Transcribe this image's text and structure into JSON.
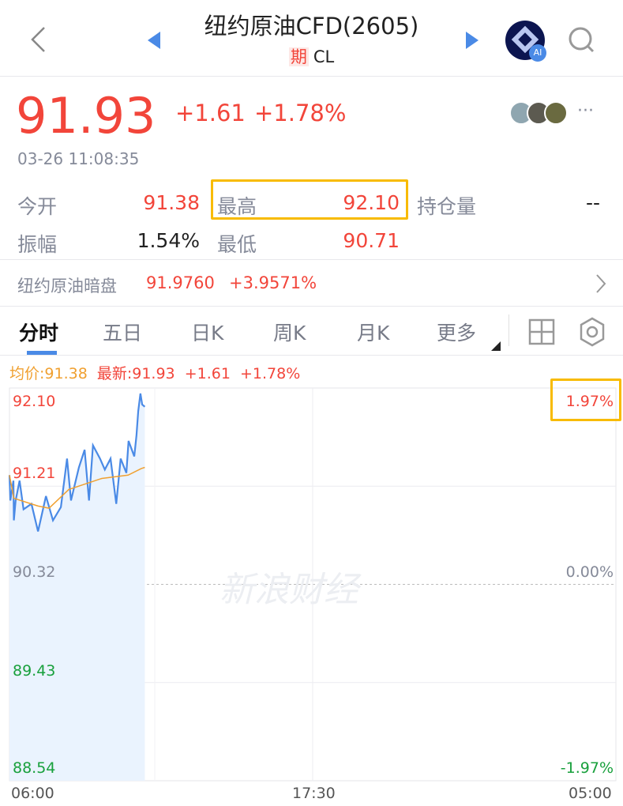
{
  "header": {
    "title": "纽约原油CFD(2605)",
    "badge": "期",
    "code": "CL",
    "ai_label": "AI"
  },
  "quote": {
    "price": "91.93",
    "change": "+1.61",
    "change_pct": "+1.78%",
    "time": "03-26 11:08:35"
  },
  "stats": [
    {
      "label": "今开",
      "value": "91.38"
    },
    {
      "label": "最高",
      "value": "92.10"
    },
    {
      "label": "持仓量",
      "value": "--"
    },
    {
      "label": "振幅",
      "value": "1.54%"
    },
    {
      "label": "最低",
      "value": "90.71"
    }
  ],
  "dark_pool": {
    "label": "纽约原油暗盘",
    "price": "91.9760",
    "change_pct": "+3.9571%"
  },
  "tabs": [
    "分时",
    "五日",
    "日K",
    "周K",
    "月K",
    "更多"
  ],
  "legend": {
    "avg": "均价:91.38",
    "latest": "最新:91.93",
    "change": "+1.61",
    "change_pct": "+1.78%"
  },
  "colors": {
    "up": "#f2453a",
    "down": "#18a03c",
    "price_line": "#4a8ae6",
    "avg_line": "#f0a030",
    "highlight": "#f8bb00"
  },
  "watermark": "新浪财经",
  "chart_data": {
    "type": "line",
    "ylim": [
      88.54,
      92.1
    ],
    "y_ticks": [
      "92.10",
      "91.21",
      "90.32",
      "89.43",
      "88.54"
    ],
    "pct_ticks": [
      "1.97%",
      "0.00%",
      "-1.97%"
    ],
    "x_ticks": [
      "06:00",
      "17:30",
      "05:00"
    ],
    "x_range": [
      "06:00",
      "05:00 (+1d)"
    ],
    "series": [
      {
        "key": "price",
        "x": [
          "06:00",
          "06:02",
          "06:09",
          "06:10",
          "06:14",
          "06:23",
          "06:32",
          "06:50",
          "07:05",
          "07:23",
          "07:39",
          "07:57",
          "08:11",
          "08:20",
          "08:38",
          "08:51",
          "09:01",
          "09:10",
          "09:26",
          "09:37",
          "09:50",
          "10:03",
          "10:13",
          "10:26",
          "10:31",
          "10:44",
          "10:49",
          "10:53",
          "10:58",
          "11:02",
          "11:08"
        ],
        "values": [
          91.31,
          91.08,
          91.26,
          90.9,
          91.08,
          91.26,
          91.0,
          91.05,
          90.8,
          91.12,
          90.9,
          91.02,
          91.46,
          91.08,
          91.38,
          91.54,
          91.08,
          91.58,
          91.46,
          91.36,
          91.46,
          91.05,
          91.46,
          91.33,
          91.62,
          91.48,
          91.67,
          91.89,
          92.05,
          91.95,
          91.93
        ]
      },
      {
        "key": "avg",
        "x": [
          "06:00",
          "06:10",
          "07:05",
          "07:30",
          "08:15",
          "09:00",
          "09:30",
          "10:30",
          "11:00",
          "11:08"
        ],
        "values": [
          91.31,
          91.1,
          91.03,
          91.01,
          91.18,
          91.24,
          91.28,
          91.31,
          91.37,
          91.38
        ]
      }
    ]
  }
}
